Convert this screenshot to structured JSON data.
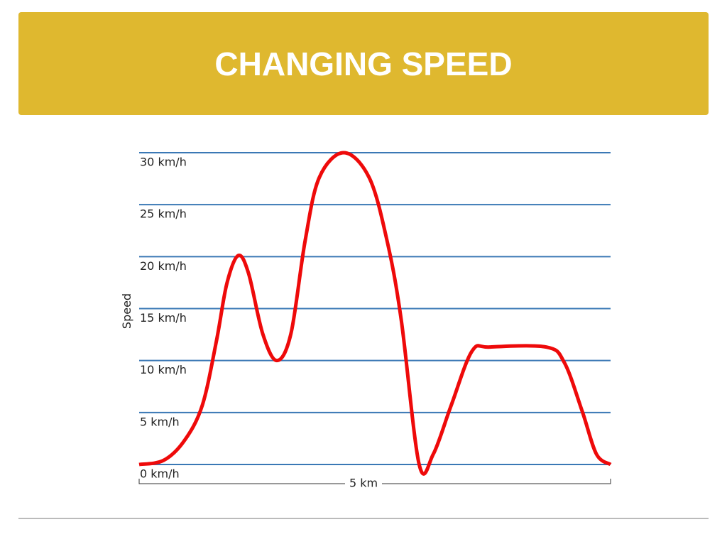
{
  "chart_data": {
    "type": "line",
    "title": "CHANGING SPEED",
    "y_label": "Speed",
    "x_label": "5 km",
    "x": [
      0,
      0.26,
      0.48,
      0.67,
      0.82,
      0.93,
      1.05,
      1.16,
      1.31,
      1.46,
      1.61,
      1.76,
      1.91,
      2.17,
      2.44,
      2.63,
      2.78,
      2.97,
      3.12,
      3.31,
      3.53,
      3.72,
      4.32,
      4.51,
      4.7,
      4.85,
      5
    ],
    "values": [
      0,
      0.4,
      2.3,
      5.7,
      11.9,
      17.4,
      20.1,
      18.4,
      12.6,
      10,
      12.6,
      21.5,
      27.6,
      30,
      27.6,
      21.5,
      13.9,
      0,
      1,
      5.7,
      10.9,
      11.3,
      11.3,
      9.8,
      5.1,
      1,
      0
    ],
    "color": "#ee0a0a",
    "grid_color": "#3a78b5",
    "xlim": [
      0,
      5
    ],
    "ylim": [
      0,
      30
    ],
    "yticks": [
      {
        "value": 0,
        "label": "0 km/h"
      },
      {
        "value": 5,
        "label": "5 km/h"
      },
      {
        "value": 10,
        "label": "10 km/h"
      },
      {
        "value": 15,
        "label": "15 km/h"
      },
      {
        "value": 20,
        "label": "20 km/h"
      },
      {
        "value": 25,
        "label": "25 km/h"
      },
      {
        "value": 30,
        "label": "30 km/h"
      }
    ],
    "grid": true
  }
}
